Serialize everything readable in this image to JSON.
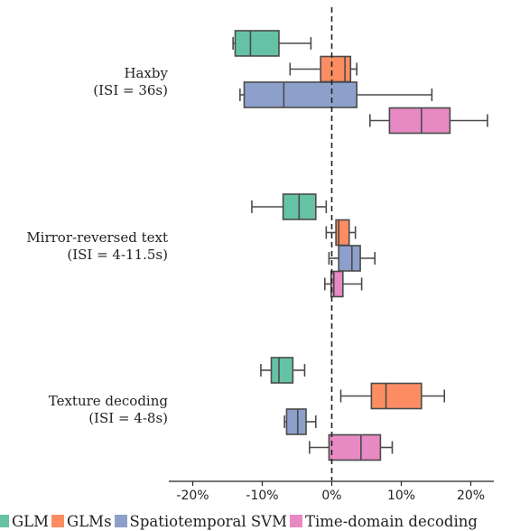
{
  "chart_data": {
    "type": "boxplot-horizontal",
    "xaxis": {
      "ticks": [
        -20,
        -10,
        0,
        10,
        20
      ],
      "tick_labels": [
        "-20%",
        "-10%",
        "0%",
        "10%",
        "20%"
      ],
      "xlim": [
        -23,
        23
      ]
    },
    "reference_line": {
      "x": 0,
      "style": "dashed"
    },
    "groups": [
      {
        "label_line1": "Haxby",
        "label_line2": "(ISI = 36s)"
      },
      {
        "label_line1": "Mirror-reversed text",
        "label_line2": "(ISI = 4-11.5s)"
      },
      {
        "label_line1": "Texture decoding",
        "label_line2": "(ISI = 4-8s)"
      }
    ],
    "series": [
      {
        "name": "GLM",
        "color": "#66c2a5",
        "boxes": [
          {
            "whislo": -14.2,
            "q1": -13.9,
            "med": -11.7,
            "q3": -7.6,
            "whishi": -3.0
          },
          {
            "whislo": -11.5,
            "q1": -7.0,
            "med": -4.7,
            "q3": -2.3,
            "whishi": -0.8
          },
          {
            "whislo": -10.2,
            "q1": -8.7,
            "med": -7.6,
            "q3": -5.6,
            "whishi": -3.9
          }
        ]
      },
      {
        "name": "GLMs",
        "color": "#fc8d62",
        "boxes": [
          {
            "whislo": -6.0,
            "q1": -1.6,
            "med": 1.9,
            "q3": 2.7,
            "whishi": 3.6
          },
          {
            "whislo": -0.8,
            "q1": 0.6,
            "med": 1.0,
            "q3": 2.5,
            "whishi": 3.4
          },
          {
            "whislo": 1.3,
            "q1": 5.7,
            "med": 7.8,
            "q3": 12.9,
            "whishi": 16.2
          }
        ]
      },
      {
        "name": "Spatiotemporal SVM",
        "color": "#8da0cb",
        "boxes": [
          {
            "whislo": -13.2,
            "q1": -12.6,
            "med": -6.9,
            "q3": 3.6,
            "whishi": 14.4
          },
          {
            "whislo": -0.4,
            "q1": 1.0,
            "med": 2.9,
            "q3": 4.1,
            "whishi": 6.2
          },
          {
            "whislo": -6.8,
            "q1": -6.5,
            "med": -4.9,
            "q3": -3.7,
            "whishi": -2.3
          }
        ]
      },
      {
        "name": "Time-domain decoding",
        "color": "#e78ac3",
        "boxes": [
          {
            "whislo": 5.5,
            "q1": 8.3,
            "med": 12.9,
            "q3": 17.0,
            "whishi": 22.4
          },
          {
            "whislo": -1.0,
            "q1": -0.1,
            "med": 0.3,
            "q3": 1.6,
            "whishi": 4.3
          },
          {
            "whislo": -3.2,
            "q1": -0.4,
            "med": 4.2,
            "q3": 7.0,
            "whishi": 8.7
          }
        ]
      }
    ]
  }
}
